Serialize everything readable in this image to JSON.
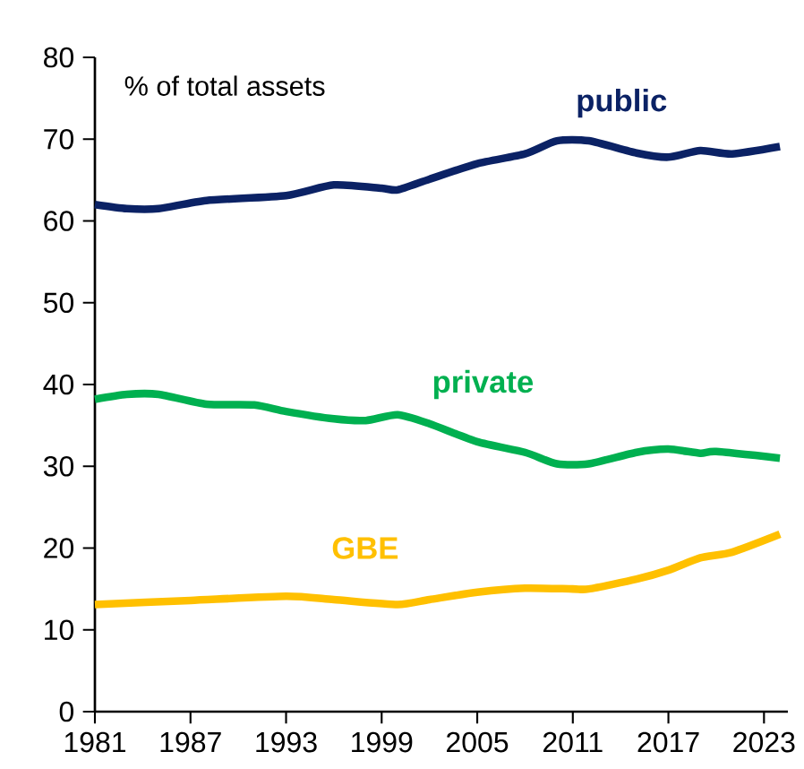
{
  "chart_data": {
    "type": "line",
    "annotations": [
      "% of total assets"
    ],
    "xlim": [
      1981,
      2024.5
    ],
    "xticks": [
      1981,
      1987,
      1993,
      1999,
      2005,
      2011,
      2017,
      2023
    ],
    "ylim": [
      0,
      80
    ],
    "yticks": [
      0,
      10,
      20,
      30,
      40,
      50,
      60,
      70,
      80
    ],
    "grid": false,
    "legend": false,
    "marker": "none",
    "line_style": "solid",
    "series": [
      {
        "name": "public",
        "color": "#0b2265",
        "x": [
          1981,
          1983,
          1985,
          1988,
          1993,
          1996,
          1999,
          2000,
          2002,
          2005,
          2008,
          2010,
          2012,
          2015,
          2017,
          2019,
          2021,
          2024
        ],
        "values": [
          62.0,
          61.5,
          61.5,
          62.5,
          63.1,
          64.4,
          64.0,
          63.8,
          65.1,
          67.0,
          68.2,
          69.8,
          69.8,
          68.3,
          67.8,
          68.6,
          68.2,
          69.1
        ]
      },
      {
        "name": "private",
        "color": "#00b050",
        "x": [
          1981,
          1983,
          1985,
          1988,
          1991,
          1993,
          1996,
          1998,
          2000,
          2002,
          2005,
          2008,
          2010,
          2012,
          2015,
          2017,
          2019,
          2020,
          2024
        ],
        "values": [
          38.2,
          38.8,
          38.8,
          37.6,
          37.5,
          36.7,
          35.8,
          35.6,
          36.3,
          35.2,
          33.0,
          31.7,
          30.3,
          30.3,
          31.7,
          32.1,
          31.6,
          31.8,
          31.0
        ]
      },
      {
        "name": "GBE",
        "color": "#ffc000",
        "x": [
          1981,
          1987,
          1993,
          1996,
          2000,
          2002,
          2005,
          2008,
          2011,
          2012,
          2015,
          2017,
          2019,
          2021,
          2024
        ],
        "values": [
          13.1,
          13.6,
          14.1,
          13.7,
          13.1,
          13.7,
          14.6,
          15.1,
          15.0,
          15.0,
          16.2,
          17.3,
          18.8,
          19.5,
          21.7
        ]
      }
    ]
  }
}
